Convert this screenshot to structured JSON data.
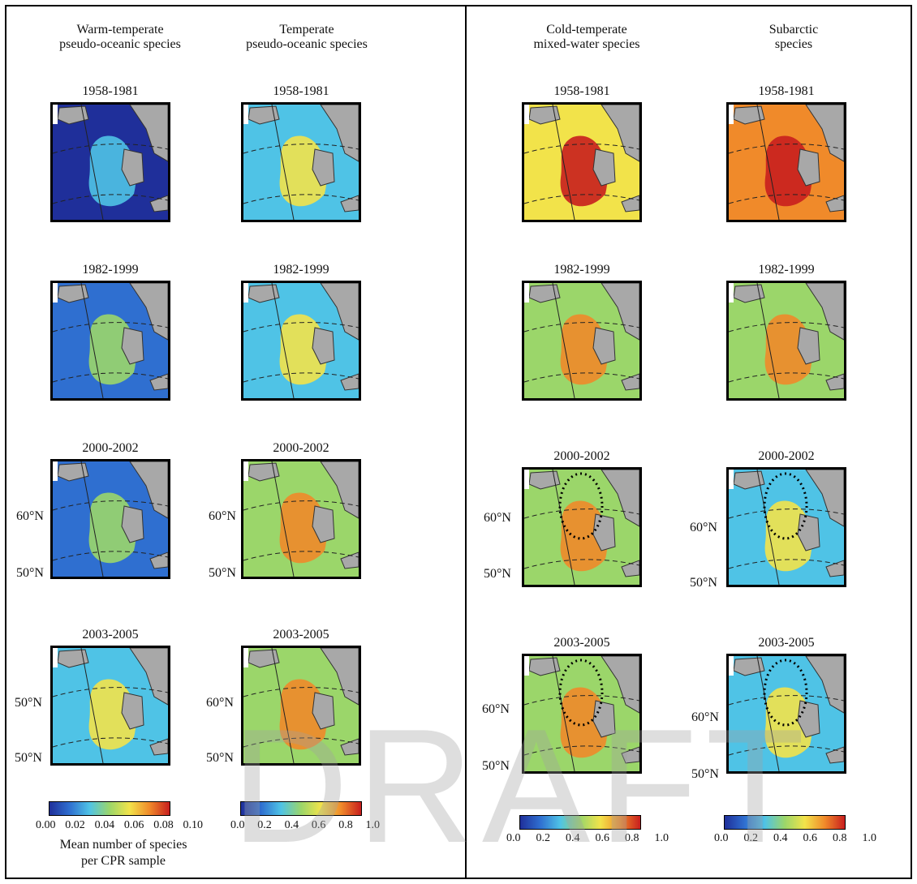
{
  "columns": [
    {
      "title_l1": "Warm-temperate",
      "title_l2": "pseudo-oceanic species"
    },
    {
      "title_l1": "Temperate",
      "title_l2": "pseudo-oceanic species"
    },
    {
      "title_l1": "Cold-temperate",
      "title_l2": "mixed-water species"
    },
    {
      "title_l1": "Subarctic",
      "title_l2": "species"
    }
  ],
  "periods": [
    "1958-1981",
    "1982-1999",
    "2000-2002",
    "2003-2005"
  ],
  "lat_labels": {
    "p60": "60°N",
    "p50": "50°N",
    "p60_cut": "50°N"
  },
  "colorbars": [
    {
      "ticks": [
        "0.00",
        "0.02",
        "0.04",
        "0.06",
        "0.08",
        "0.10"
      ],
      "label_l1": "Mean number of species",
      "label_l2": "per CPR sample"
    },
    {
      "ticks": [
        "0.0",
        "0.2",
        "0.4",
        "0.6",
        "0.8",
        "1.0"
      ]
    },
    {
      "ticks": [
        "0.0",
        "0.2",
        "0.4",
        "0.6",
        "0.8",
        "1.0"
      ]
    },
    {
      "ticks": [
        "0.0",
        "0.2",
        "0.4",
        "0.6",
        "0.8",
        "1.0"
      ]
    }
  ],
  "colors": {
    "deep": "#1f2f9a",
    "blue": "#2f6fd0",
    "cyan": "#4fc3e6",
    "green": "#9bd66a",
    "yellow": "#f2e34a",
    "orange": "#f08a2a",
    "red": "#c81e1e",
    "land": "#a8a8a8"
  },
  "panel_levels": [
    [
      0.05,
      0.25,
      0.6,
      0.75
    ],
    [
      0.1,
      0.35,
      0.55,
      0.55
    ],
    [
      0.15,
      0.5,
      0.5,
      0.35
    ],
    [
      0.25,
      0.55,
      0.55,
      0.3
    ]
  ],
  "watermark": "DRAFT"
}
